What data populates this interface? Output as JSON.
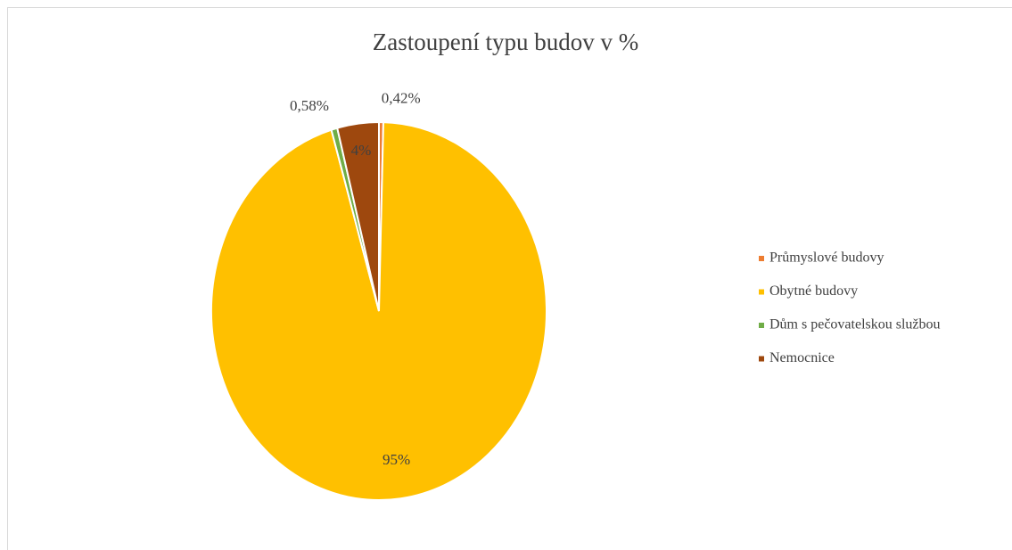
{
  "chart_data": {
    "type": "pie",
    "title": "Zastoupení typu budov v %",
    "categories": [
      "Průmyslové budovy",
      "Obytné budovy",
      "Dům s pečovatelskou službou",
      "Nemocnice"
    ],
    "values": [
      0.42,
      95,
      0.58,
      4
    ],
    "value_labels": [
      "0,42%",
      "95%",
      "0,58%",
      "4%"
    ],
    "colors": [
      "#ed7d31",
      "#ffc000",
      "#70ad47",
      "#9e480e"
    ],
    "legend": "right"
  }
}
